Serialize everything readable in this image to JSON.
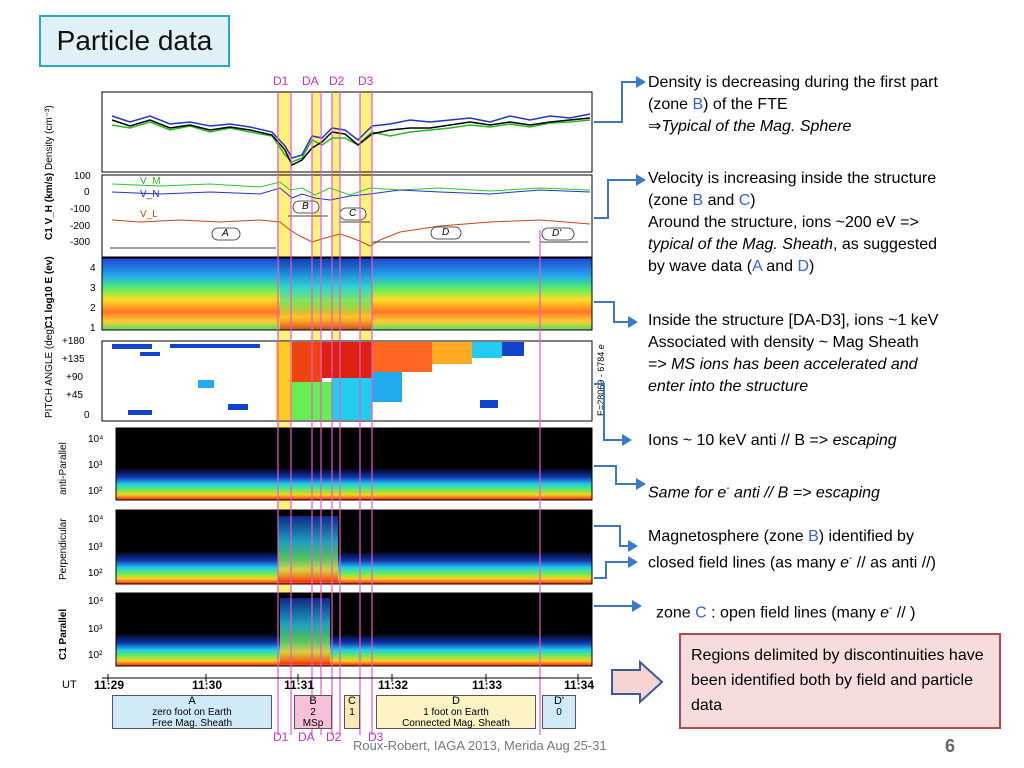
{
  "slide": {
    "title": "Particle data",
    "footer": "Roux-Robert, IAGA 2013, Merida Aug 25-31",
    "page_number": "6"
  },
  "discontinuities_top": [
    "D1",
    "DA",
    "D2",
    "D3"
  ],
  "discontinuities_bottom": [
    "D1",
    "DA",
    "D2",
    "D3"
  ],
  "panels": {
    "density": {
      "ylabel": "Density (cm⁻³)"
    },
    "velocity": {
      "ylabel": "C1 V_H (km/s)",
      "ticks": [
        "100",
        "0",
        "-100",
        "-200",
        "-300"
      ],
      "series": [
        "V_M",
        "V_N",
        "V_L"
      ],
      "zone_labels": [
        "A",
        "B",
        "C",
        "D",
        "D'"
      ]
    },
    "energy": {
      "ylabel": "C1 log10 E (ev)",
      "ticks": [
        "4",
        "3",
        "2",
        "1"
      ]
    },
    "pitch": {
      "ylabel": "PITCH ANGLE (deg)",
      "ticks": [
        "+180",
        "+135",
        "+90",
        "+45",
        "0"
      ],
      "side_label": "E=28069 - 6784 e"
    },
    "anti_parallel": {
      "ylabel": "anti-Parallel",
      "ticks": [
        "10⁴",
        "10³",
        "10²"
      ]
    },
    "perpendicular": {
      "ylabel": "Perpendicular",
      "ticks": [
        "10⁴",
        "10³",
        "10²"
      ]
    },
    "parallel": {
      "ylabel": "C1  Parallel",
      "ticks": [
        "10⁴",
        "10³",
        "10²"
      ]
    }
  },
  "time_axis": {
    "unit": "UT",
    "labels": [
      "11:29",
      "11:30",
      "11:31",
      "11:32",
      "11:33",
      "11:34"
    ]
  },
  "zones": [
    {
      "letter": "A",
      "line1": "zero foot on Earth",
      "line2": "Free Mag. Sheath",
      "color": "#cfe9f7"
    },
    {
      "letter": "B",
      "line1": "2",
      "line2": "MSp",
      "color": "#f5c0d8"
    },
    {
      "letter": "C",
      "line1": "1",
      "line2": "",
      "color": "#fbe8b8"
    },
    {
      "letter": "D",
      "line1": "1  foot on Earth",
      "line2": "Connected Mag. Sheath",
      "color": "#fbf3c4"
    },
    {
      "letter": "D'",
      "line1": "0",
      "line2": "",
      "color": "#cfe9f7"
    }
  ],
  "annotations": {
    "a1": {
      "l1": "Density is decreasing during the first part",
      "p1": "(zone ",
      "z1": "B",
      "p2": ") of the FTE",
      "arrow": "⇒",
      "l3": "Typical of the Mag. Sphere"
    },
    "a2": {
      "l1": "Velocity is increasing inside the structure",
      "p1": " (zone ",
      "z1": "B",
      "p2": " and ",
      "z2": "C",
      "p3": ")",
      "l3": "Around the structure, ions ~200 eV =>",
      "l4a": "typical of the Mag. Sheath",
      "l4b": ", as suggested",
      "l5a": "by wave data (",
      "z3": "A",
      "l5b": " and ",
      "z4": "D",
      "l5c": ")"
    },
    "a3": {
      "l1": "Inside the structure [DA-D3], ions ~1 keV",
      "l2": "Associated with density ~ Mag Sheath",
      "l3a": "=> ",
      "l3b": "MS ions has been accelerated and",
      "l4": "enter into the structure"
    },
    "a4": {
      "pre": "Ions ~ 10 keV anti // B => ",
      "em": "escaping"
    },
    "a5": {
      "pre": "Same for e",
      "sup": "-",
      "post": " anti // B => escaping"
    },
    "a6": {
      "l1a": "Magnetosphere (zone ",
      "z1": "B",
      "l1b": ") identified by",
      "l2a": "closed field lines (as many ",
      "e": "e",
      "sup": "-",
      "l2b": " // as anti //)"
    },
    "a7": {
      "pre": "zone ",
      "z": "C",
      "mid": " : open field lines (many ",
      "e": "e",
      "sup": "-",
      "post": " // )"
    }
  },
  "conclusion": "Regions delimited by discontinuities have been identified both by field and particle data",
  "colors": {
    "accent": "#29a8c8",
    "zone_text": "#3366cc",
    "arrow": "#3a78c8",
    "disc_label": "#cc2ccc",
    "highlight": "#fff27a",
    "conclusion_border": "#b8454a",
    "conclusion_fill": "#f6dcdc"
  }
}
